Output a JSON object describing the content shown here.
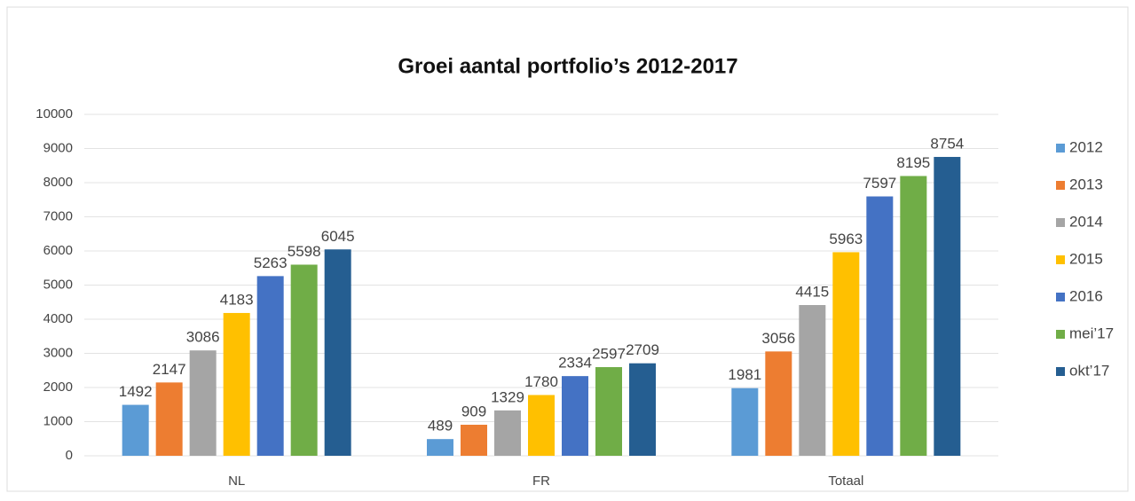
{
  "chart_data": {
    "type": "bar",
    "title": "Groei aantal portfolio’s 2012-2017",
    "categories": [
      "NL",
      "FR",
      "Totaal"
    ],
    "series": [
      {
        "name": "2012",
        "color": "#5b9bd5",
        "values": [
          1492,
          489,
          1981
        ]
      },
      {
        "name": "2013",
        "color": "#ed7d31",
        "values": [
          2147,
          909,
          3056
        ]
      },
      {
        "name": "2014",
        "color": "#a5a5a5",
        "values": [
          3086,
          1329,
          4415
        ]
      },
      {
        "name": "2015",
        "color": "#ffc000",
        "values": [
          4183,
          1780,
          5963
        ]
      },
      {
        "name": "2016",
        "color": "#4472c4",
        "values": [
          5263,
          2334,
          7597
        ]
      },
      {
        "name": "mei’17",
        "color": "#70ad47",
        "values": [
          5598,
          2597,
          8195
        ]
      },
      {
        "name": "okt’17",
        "color": "#255e91",
        "values": [
          6045,
          2709,
          8754
        ]
      }
    ],
    "ylim": [
      0,
      10000
    ],
    "yticks": [
      0,
      1000,
      2000,
      3000,
      4000,
      5000,
      6000,
      7000,
      8000,
      9000,
      10000
    ],
    "grid": true,
    "legend": "right"
  }
}
